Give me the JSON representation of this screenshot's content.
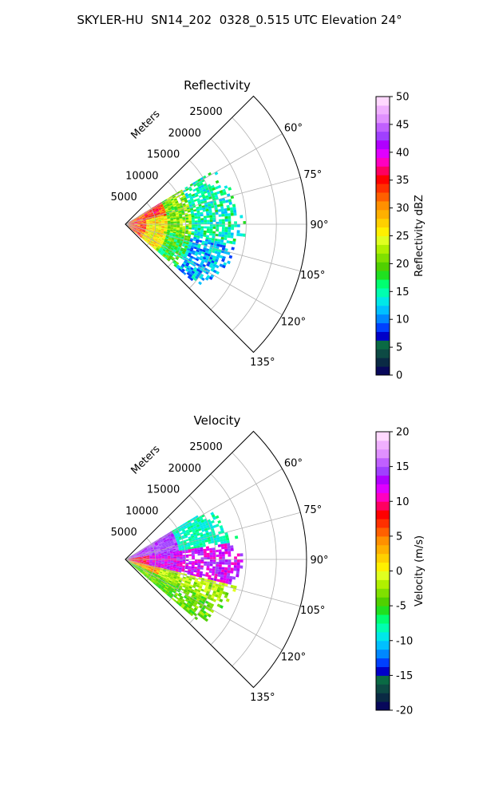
{
  "figure": {
    "title": "SKYLER-HU  SN14_202  0328_0.515 UTC Elevation 24°"
  },
  "chart_data": [
    {
      "type": "heatmap",
      "projection": "polar-sector",
      "title": "Reflectivity",
      "radial_axis_label": "Meters",
      "radial_ticks": [
        5000,
        10000,
        15000,
        20000,
        25000
      ],
      "radial_range": [
        0,
        30000
      ],
      "theta_ticks": [
        "60°",
        "75°",
        "90°",
        "105°",
        "120°",
        "135°"
      ],
      "theta_range_deg": [
        45,
        135
      ],
      "theta_tick_values": [
        60,
        75,
        90,
        105,
        120,
        135
      ],
      "grid": true,
      "colorbar": {
        "label": "Reflectivity dBZ",
        "range": [
          0,
          50
        ],
        "ticks": [
          0,
          5,
          10,
          15,
          20,
          25,
          30,
          35,
          40,
          45,
          50
        ],
        "levels": [
          "#08085a",
          "#0a2a44",
          "#0d4a44",
          "#0a6a44",
          "#0000c8",
          "#0040ff",
          "#0088ff",
          "#00c0ff",
          "#00e8e8",
          "#00ffb0",
          "#00ff70",
          "#20e020",
          "#50d000",
          "#80e000",
          "#b0f000",
          "#e0ff20",
          "#fff000",
          "#ffd000",
          "#ffb000",
          "#ff9000",
          "#ff6000",
          "#ff3000",
          "#ff0000",
          "#ff0060",
          "#ff00c0",
          "#e000ff",
          "#b000ff",
          "#a040ff",
          "#c060ff",
          "#e090ff",
          "#f0b0ff",
          "#ffd8ff"
        ]
      },
      "echo_summary": "Echo extends from the radar out to about 20000 m between roughly 60° and 130°; highest values (30–40 dBZ, red/orange) within about 7000 m near 70°–110°; 15–25 dBZ (green/yellow) at mid range; 10–15 dBZ (cyan) beyond 10000 m."
    },
    {
      "type": "heatmap",
      "projection": "polar-sector",
      "title": "Velocity",
      "radial_axis_label": "Meters",
      "radial_ticks": [
        5000,
        10000,
        15000,
        20000,
        25000
      ],
      "radial_range": [
        0,
        30000
      ],
      "theta_ticks": [
        "60°",
        "75°",
        "90°",
        "105°",
        "120°",
        "135°"
      ],
      "theta_range_deg": [
        45,
        135
      ],
      "theta_tick_values": [
        60,
        75,
        90,
        105,
        120,
        135
      ],
      "grid": true,
      "colorbar": {
        "label": "Velocity (m/s)",
        "range": [
          -20,
          20
        ],
        "ticks": [
          -20,
          -15,
          -10,
          -5,
          0,
          5,
          10,
          15,
          20
        ],
        "levels": [
          "#08085a",
          "#0a2a44",
          "#0d4a44",
          "#0a6a44",
          "#0000c8",
          "#0040ff",
          "#0088ff",
          "#00c0ff",
          "#00e8e8",
          "#00ffb0",
          "#00ff70",
          "#20e020",
          "#50d000",
          "#80e000",
          "#b0f000",
          "#e0ff20",
          "#fff000",
          "#ffd000",
          "#ffb000",
          "#ff9000",
          "#ff6000",
          "#ff3000",
          "#ff0000",
          "#ff0060",
          "#ff00c0",
          "#e000ff",
          "#b000ff",
          "#a040ff",
          "#c060ff",
          "#e090ff",
          "#f0b0ff",
          "#ffd8ff"
        ]
      },
      "echo_summary": "Echo extends from the radar out to about 20000 m between roughly 60° and 130°; -10 m/s (cyan/green) north of 80°; +10 to +15 m/s (magenta/red) near 80°–105°; 0 to +5 m/s (yellow/orange) and -5 m/s (green) south of 105°."
    }
  ]
}
